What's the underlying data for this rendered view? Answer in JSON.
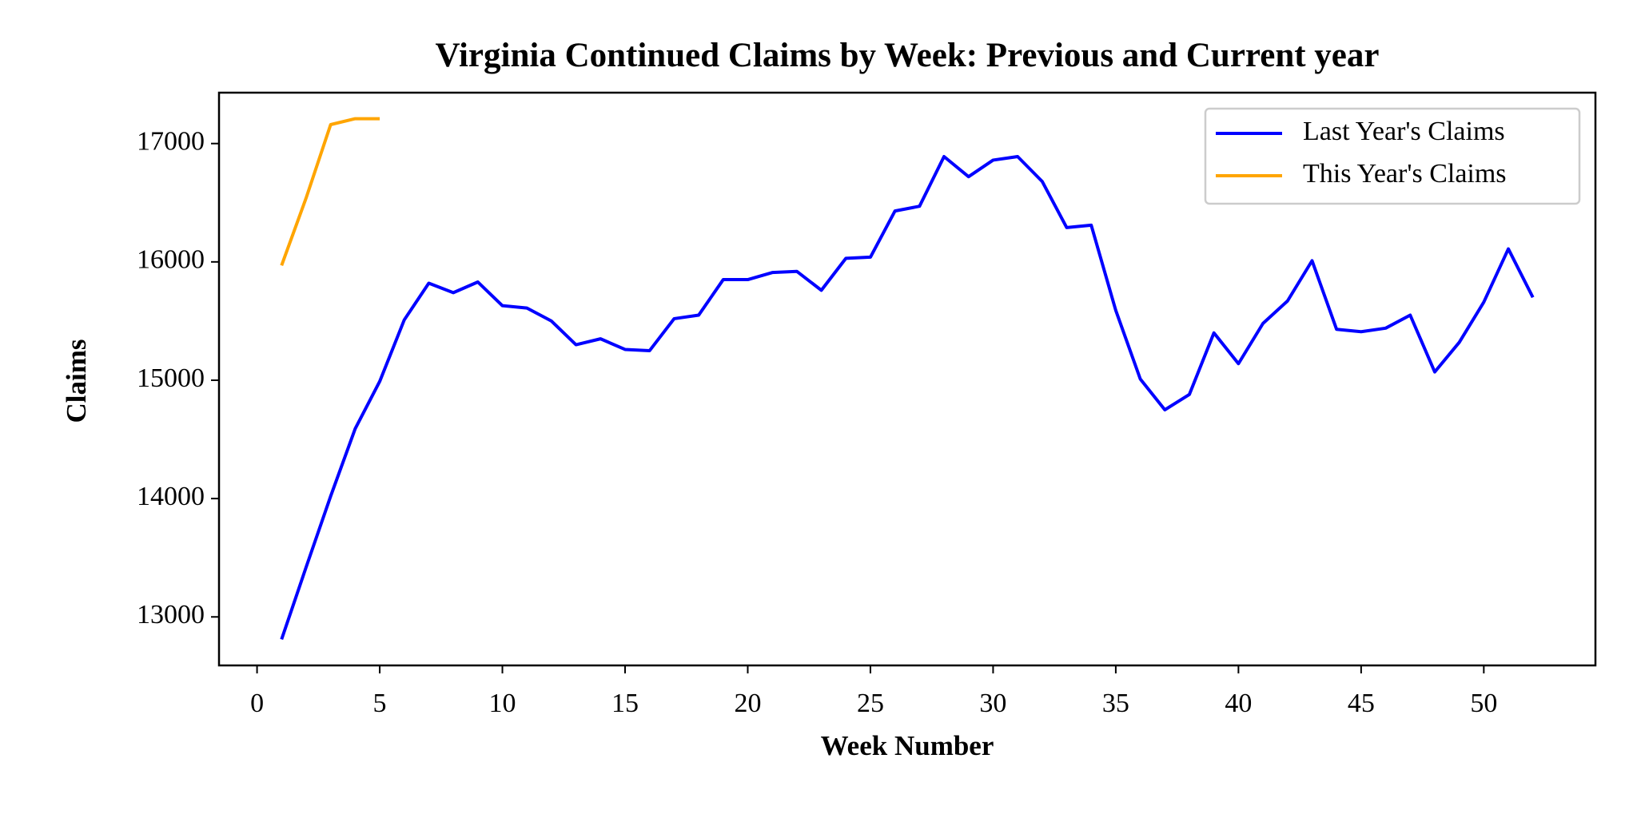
{
  "chart_data": {
    "type": "line",
    "title": "Virginia Continued Claims by Week: Previous and Current year",
    "x_label": "Week Number",
    "y_label": "Claims",
    "x": [
      1,
      2,
      3,
      4,
      5,
      6,
      7,
      8,
      9,
      10,
      11,
      12,
      13,
      14,
      15,
      16,
      17,
      18,
      19,
      20,
      21,
      22,
      23,
      24,
      25,
      26,
      27,
      28,
      29,
      30,
      31,
      32,
      33,
      34,
      35,
      36,
      37,
      38,
      39,
      40,
      41,
      42,
      43,
      44,
      45,
      46,
      47,
      48,
      49,
      50,
      51,
      52
    ],
    "series": [
      {
        "name": "Last Year's Claims",
        "color": "#0000ff",
        "values": [
          12810,
          13420,
          14020,
          14590,
          14990,
          15510,
          15820,
          15740,
          15830,
          15630,
          15610,
          15500,
          15300,
          15350,
          15260,
          15250,
          15520,
          15550,
          15850,
          15850,
          15910,
          15920,
          15760,
          16030,
          16040,
          16430,
          16470,
          16890,
          16720,
          16860,
          16890,
          16680,
          16290,
          16310,
          15590,
          15010,
          14750,
          14880,
          15400,
          15140,
          15480,
          15670,
          16010,
          15430,
          15410,
          15440,
          15550,
          15070,
          15320,
          15660,
          16110,
          15700
        ]
      },
      {
        "name": "This Year's Claims",
        "color": "#ffa500",
        "values": [
          15970,
          16540,
          17160,
          17210,
          17210,
          null,
          null,
          null,
          null,
          null,
          null,
          null,
          null,
          null,
          null,
          null,
          null,
          null,
          null,
          null,
          null,
          null,
          null,
          null,
          null,
          null,
          null,
          null,
          null,
          null,
          null,
          null,
          null,
          null,
          null,
          null,
          null,
          null,
          null,
          null,
          null,
          null,
          null,
          null,
          null,
          null,
          null,
          null,
          null,
          null,
          null,
          null
        ]
      }
    ],
    "xlim": [
      -1.55,
      54.55
    ],
    "xticks": [
      0,
      5,
      10,
      15,
      20,
      25,
      30,
      35,
      40,
      45,
      50
    ],
    "ylim": [
      12590,
      17430
    ],
    "yticks": [
      13000,
      14000,
      15000,
      16000,
      17000
    ],
    "grid": false,
    "legend": "upper right"
  }
}
